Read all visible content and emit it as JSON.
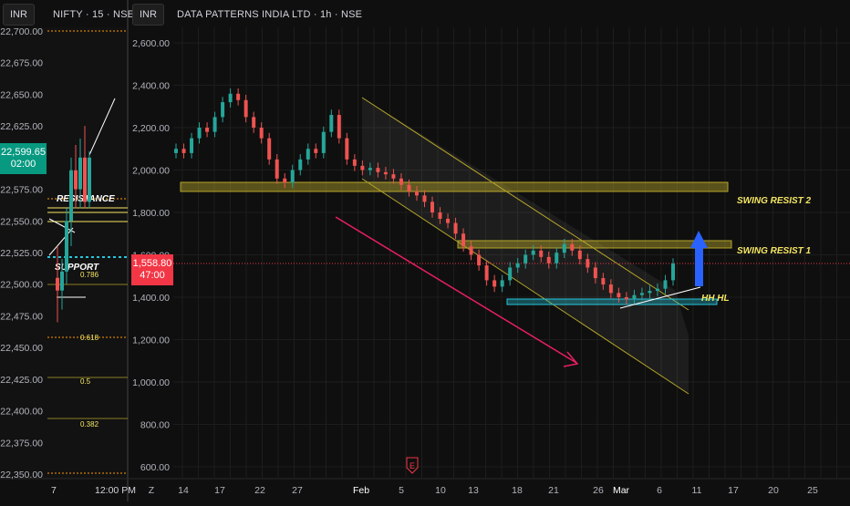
{
  "left_panel": {
    "currency": "INR",
    "title": "NIFTY · 15 · NSE",
    "y_ticks": [
      "22,700.00",
      "22,675.00",
      "22,650.00",
      "22,625.00",
      "22,575.00",
      "22,550.00",
      "22,525.00",
      "22,500.00",
      "22,475.00",
      "22,450.00",
      "22,425.00",
      "22,400.00",
      "22,375.00",
      "22,350.00"
    ],
    "last_price": "22,599.65",
    "countdown": "02:00",
    "x_labels": [
      "7",
      "12:00 PM"
    ],
    "annotations": {
      "resistance": "RESISTANCE",
      "support": "SUPPORT"
    },
    "fib_levels": [
      "0.786",
      "0.618",
      "0.5",
      "0.382"
    ]
  },
  "right_panel": {
    "currency": "INR",
    "title": "DATA PATTERNS INDIA LTD · 1h · NSE",
    "y_ticks": [
      "2,600.00",
      "2,400.00",
      "2,200.00",
      "2,000.00",
      "1,800.00",
      "1,600.00",
      "1,400.00",
      "1,200.00",
      "1,000.00",
      "800.00",
      "600.00"
    ],
    "last_price": "1,558.80",
    "countdown": "47:00",
    "x_labels": [
      "Z",
      "14",
      "17",
      "22",
      "27",
      "Feb",
      "5",
      "10",
      "13",
      "18",
      "21",
      "26",
      "Mar",
      "6",
      "11",
      "17",
      "20",
      "25"
    ],
    "earnings_marker": "E",
    "annotations": {
      "swing_resist_2": "SWING RESIST 2",
      "swing_resist_1": "SWING RESIST 1",
      "hh_hl": "HH HL"
    }
  },
  "colors": {
    "background": "#0f0f0f",
    "up": "#26a69a",
    "down": "#ef5350",
    "zone": "#b5a52a",
    "annotation": "#f5e663",
    "arrow_down": "#e91e63",
    "arrow_up": "#2962ff",
    "last_price_green": "#089981",
    "last_price_red": "#f23645"
  },
  "chart_data": [
    {
      "type": "candlestick",
      "title": "NIFTY · 15 · NSE",
      "ylim": [
        22335,
        22705
      ],
      "series": [
        {
          "values": [
            {
              "o": 22505,
              "h": 22530,
              "l": 22470,
              "c": 22495
            },
            {
              "o": 22495,
              "h": 22520,
              "l": 22480,
              "c": 22510
            },
            {
              "o": 22510,
              "h": 22560,
              "l": 22500,
              "c": 22550
            },
            {
              "o": 22550,
              "h": 22600,
              "l": 22530,
              "c": 22590
            },
            {
              "o": 22590,
              "h": 22610,
              "l": 22560,
              "c": 22575
            },
            {
              "o": 22575,
              "h": 22615,
              "l": 22560,
              "c": 22600
            },
            {
              "o": 22600,
              "h": 22625,
              "l": 22560,
              "c": 22565
            },
            {
              "o": 22565,
              "h": 22605,
              "l": 22560,
              "c": 22600
            }
          ]
        }
      ]
    },
    {
      "type": "candlestick",
      "title": "DATA PATTERNS INDIA LTD · 1h · NSE",
      "ylim": [
        560,
        2700
      ],
      "series": [
        {
          "name": "close",
          "values": [
            2100,
            2080,
            2150,
            2200,
            2180,
            2250,
            2320,
            2360,
            2330,
            2250,
            2200,
            2150,
            2050,
            1960,
            1940,
            2000,
            2050,
            2100,
            2080,
            2180,
            2260,
            2150,
            2050,
            2020,
            2000,
            2010,
            1990,
            1980,
            1960,
            1930,
            1900,
            1880,
            1850,
            1800,
            1770,
            1750,
            1700,
            1640,
            1600,
            1550,
            1480,
            1450,
            1480,
            1540,
            1560,
            1600,
            1620,
            1590,
            1560,
            1610,
            1650,
            1620,
            1580,
            1540,
            1490,
            1460,
            1420,
            1400,
            1390,
            1410,
            1420,
            1430,
            1440,
            1480,
            1559
          ]
        },
        {
          "name": "price_channel_upper",
          "values": [
            [
              2330,
              1550
            ]
          ]
        },
        {
          "name": "price_channel_lower",
          "values": [
            [
              1950,
              960
            ]
          ]
        }
      ],
      "zones": [
        {
          "name": "SWING RESIST 2",
          "low": 1900,
          "high": 1945
        },
        {
          "name": "SWING RESIST 1",
          "low": 1620,
          "high": 1660
        },
        {
          "name": "support zone",
          "low": 1370,
          "high": 1395
        }
      ]
    }
  ]
}
